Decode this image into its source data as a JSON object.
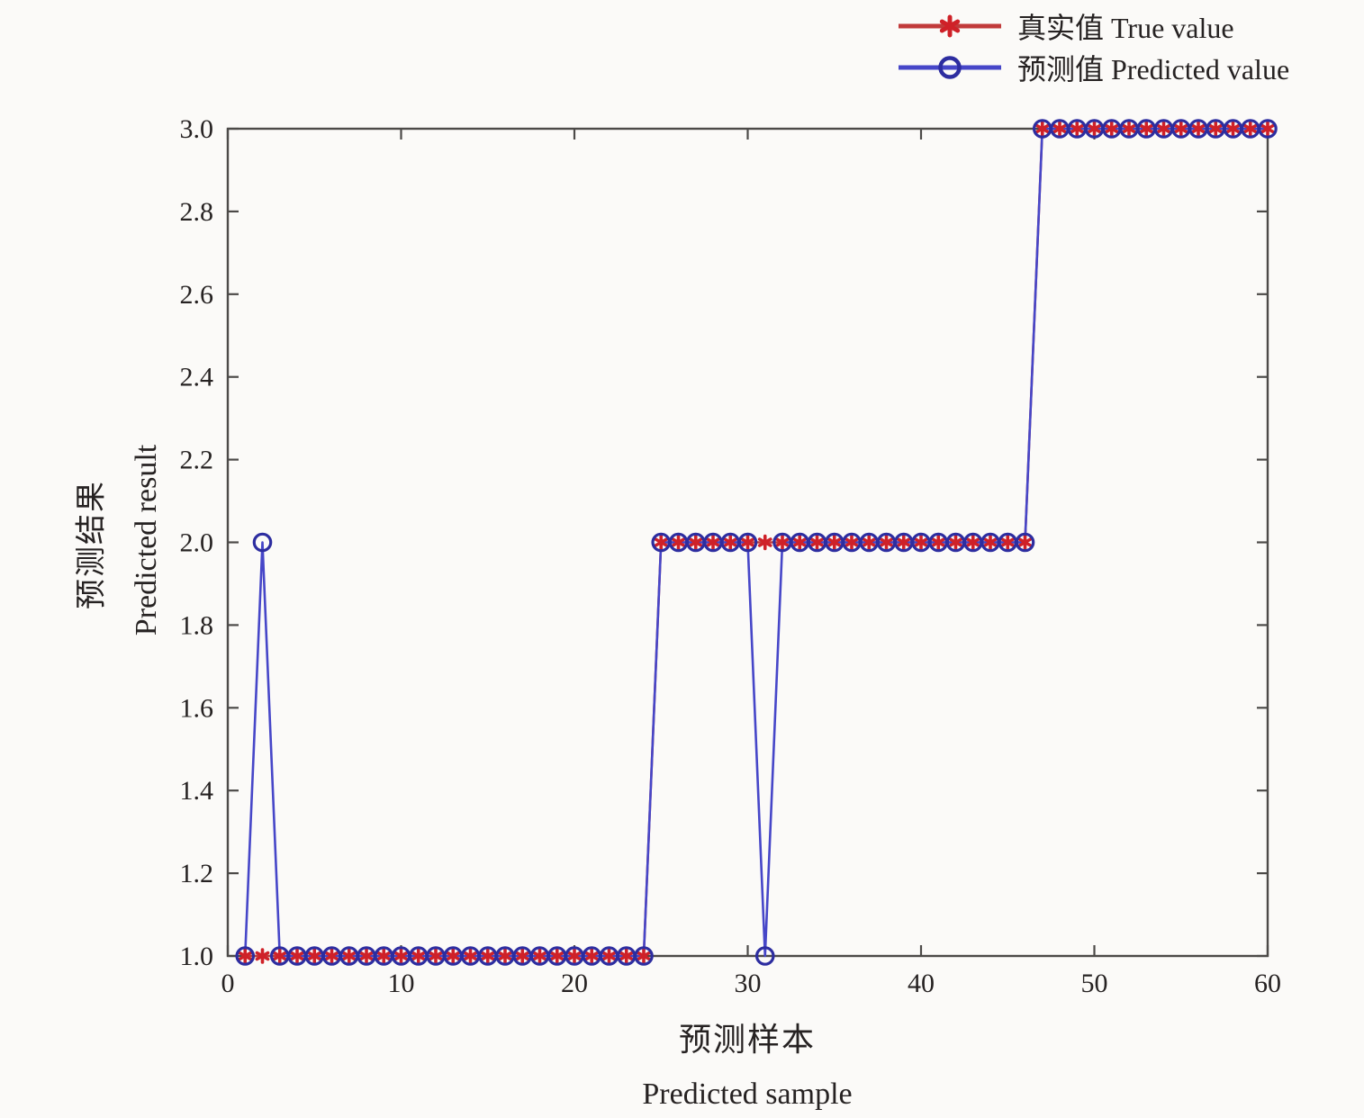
{
  "figure": {
    "background": "#fbfaf8",
    "axis_color": "#4c4a48",
    "text_color": "#262222"
  },
  "legend": {
    "items": [
      {
        "label": "真实值 True value",
        "series_index": 0
      },
      {
        "label": "预测值 Predicted value",
        "series_index": 1
      }
    ]
  },
  "chart_data": {
    "type": "line",
    "title": "",
    "xlabel_zh": "预测样本",
    "xlabel_en": "Predicted sample",
    "ylabel_zh": "预测结果",
    "ylabel_en": "Predicted result",
    "xlim": [
      0,
      60
    ],
    "ylim": [
      1.0,
      3.0
    ],
    "xtick_values": [
      0,
      10,
      20,
      30,
      40,
      50,
      60
    ],
    "xtick_labels": [
      "0",
      "10",
      "20",
      "30",
      "40",
      "50",
      "60"
    ],
    "ytick_values": [
      1.0,
      1.2,
      1.4,
      1.6,
      1.8,
      2.0,
      2.2,
      2.4,
      2.6,
      2.8,
      3.0
    ],
    "ytick_labels": [
      "1.0",
      "1.2",
      "1.4",
      "1.6",
      "1.8",
      "2.0",
      "2.2",
      "2.4",
      "2.6",
      "2.8",
      "3.0"
    ],
    "grid": false,
    "legend_position": "top-right-outside",
    "x": [
      1,
      2,
      3,
      4,
      5,
      6,
      7,
      8,
      9,
      10,
      11,
      12,
      13,
      14,
      15,
      16,
      17,
      18,
      19,
      20,
      21,
      22,
      23,
      24,
      25,
      26,
      27,
      28,
      29,
      30,
      31,
      32,
      33,
      34,
      35,
      36,
      37,
      38,
      39,
      40,
      41,
      42,
      43,
      44,
      45,
      46,
      47,
      48,
      49,
      50,
      51,
      52,
      53,
      54,
      55,
      56,
      57,
      58,
      59,
      60
    ],
    "series": [
      {
        "name": "真实值 True value",
        "marker": "asterisk",
        "line_color": "#c13a3a",
        "marker_color": "#cf2128",
        "values": [
          1,
          1,
          1,
          1,
          1,
          1,
          1,
          1,
          1,
          1,
          1,
          1,
          1,
          1,
          1,
          1,
          1,
          1,
          1,
          1,
          1,
          1,
          1,
          1,
          2,
          2,
          2,
          2,
          2,
          2,
          2,
          2,
          2,
          2,
          2,
          2,
          2,
          2,
          2,
          2,
          2,
          2,
          2,
          2,
          2,
          2,
          3,
          3,
          3,
          3,
          3,
          3,
          3,
          3,
          3,
          3,
          3,
          3,
          3,
          3
        ]
      },
      {
        "name": "预测值 Predicted value",
        "marker": "circle",
        "line_color": "#4646c8",
        "marker_color": "#2d2da0",
        "values": [
          1,
          2,
          1,
          1,
          1,
          1,
          1,
          1,
          1,
          1,
          1,
          1,
          1,
          1,
          1,
          1,
          1,
          1,
          1,
          1,
          1,
          1,
          1,
          1,
          2,
          2,
          2,
          2,
          2,
          2,
          1,
          2,
          2,
          2,
          2,
          2,
          2,
          2,
          2,
          2,
          2,
          2,
          2,
          2,
          2,
          2,
          3,
          3,
          3,
          3,
          3,
          3,
          3,
          3,
          3,
          3,
          3,
          3,
          3,
          3
        ]
      }
    ]
  }
}
